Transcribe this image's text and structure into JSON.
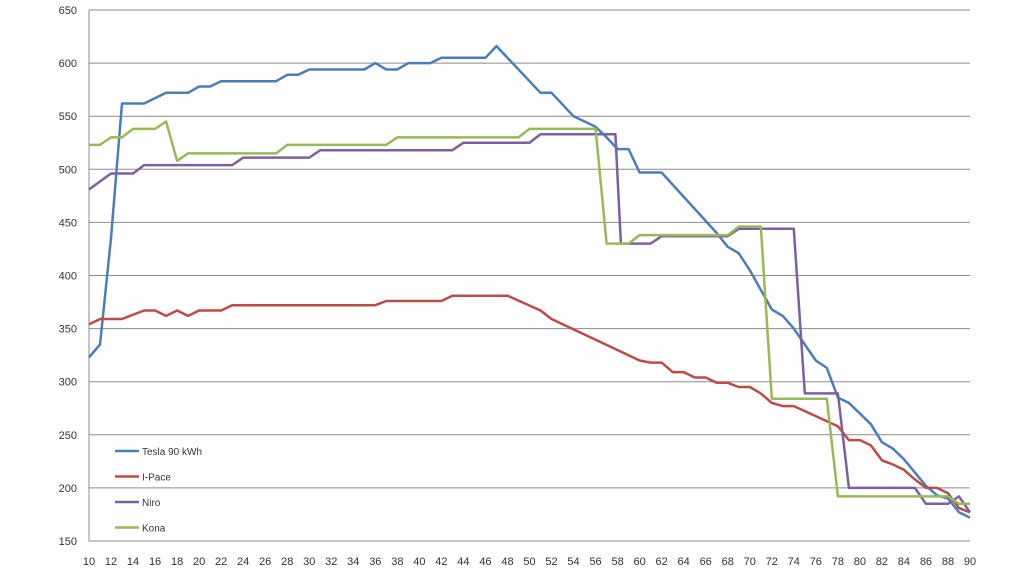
{
  "chart_data": {
    "type": "line",
    "title": "",
    "xlabel": "",
    "ylabel": "",
    "xlim": [
      10,
      90
    ],
    "ylim": [
      150,
      650
    ],
    "grid": true,
    "legend_placement": "bottom-left",
    "x_ticks": [
      10,
      12,
      14,
      16,
      18,
      20,
      22,
      24,
      26,
      28,
      30,
      32,
      34,
      36,
      38,
      40,
      42,
      44,
      46,
      48,
      50,
      52,
      54,
      56,
      58,
      60,
      62,
      64,
      66,
      68,
      70,
      72,
      74,
      76,
      78,
      80,
      82,
      84,
      86,
      88,
      90
    ],
    "y_ticks": [
      150,
      200,
      250,
      300,
      350,
      400,
      450,
      500,
      550,
      600,
      650
    ],
    "series": [
      {
        "name": "Tesla 90 kWh",
        "color": "#4a7ebb",
        "points": [
          [
            10,
            323
          ],
          [
            11,
            335
          ],
          [
            12,
            435
          ],
          [
            13,
            562
          ],
          [
            15,
            562
          ],
          [
            16,
            567
          ],
          [
            17,
            572
          ],
          [
            19,
            572
          ],
          [
            20,
            578
          ],
          [
            21,
            578
          ],
          [
            22,
            583
          ],
          [
            27,
            583
          ],
          [
            28,
            589
          ],
          [
            29,
            589
          ],
          [
            30,
            594
          ],
          [
            35,
            594
          ],
          [
            36,
            600
          ],
          [
            37,
            594
          ],
          [
            38,
            594
          ],
          [
            39,
            600
          ],
          [
            41,
            600
          ],
          [
            42,
            605
          ],
          [
            46,
            605
          ],
          [
            47,
            616
          ],
          [
            51,
            572
          ],
          [
            52,
            572
          ],
          [
            54,
            550
          ],
          [
            56,
            540
          ],
          [
            57,
            530
          ],
          [
            58,
            519
          ],
          [
            59,
            519
          ],
          [
            60,
            497
          ],
          [
            62,
            497
          ],
          [
            67,
            440
          ],
          [
            68,
            427
          ],
          [
            69,
            421
          ],
          [
            70,
            405
          ],
          [
            72,
            368
          ],
          [
            73,
            362
          ],
          [
            74,
            350
          ],
          [
            75,
            335
          ],
          [
            76,
            320
          ],
          [
            77,
            313
          ],
          [
            78,
            285
          ],
          [
            79,
            280
          ],
          [
            81,
            260
          ],
          [
            82,
            243
          ],
          [
            83,
            237
          ],
          [
            84,
            227
          ],
          [
            86,
            202
          ],
          [
            87,
            193
          ],
          [
            88,
            190
          ],
          [
            89,
            177
          ],
          [
            90,
            172
          ]
        ]
      },
      {
        "name": "I-Pace",
        "color": "#be4b48",
        "points": [
          [
            10,
            354
          ],
          [
            11,
            359
          ],
          [
            13,
            359
          ],
          [
            15,
            367
          ],
          [
            16,
            367
          ],
          [
            17,
            362
          ],
          [
            18,
            367
          ],
          [
            19,
            362
          ],
          [
            20,
            367
          ],
          [
            22,
            367
          ],
          [
            23,
            372
          ],
          [
            36,
            372
          ],
          [
            37,
            376
          ],
          [
            42,
            376
          ],
          [
            43,
            381
          ],
          [
            48,
            381
          ],
          [
            51,
            367
          ],
          [
            52,
            359
          ],
          [
            60,
            320
          ],
          [
            61,
            318
          ],
          [
            62,
            318
          ],
          [
            63,
            309
          ],
          [
            64,
            309
          ],
          [
            65,
            304
          ],
          [
            66,
            304
          ],
          [
            67,
            299
          ],
          [
            68,
            299
          ],
          [
            69,
            295
          ],
          [
            70,
            295
          ],
          [
            71,
            289
          ],
          [
            72,
            280
          ],
          [
            73,
            277
          ],
          [
            74,
            277
          ],
          [
            78,
            258
          ],
          [
            79,
            245
          ],
          [
            80,
            245
          ],
          [
            81,
            240
          ],
          [
            82,
            226
          ],
          [
            83,
            222
          ],
          [
            84,
            217
          ],
          [
            85,
            208
          ],
          [
            86,
            200
          ],
          [
            87,
            200
          ],
          [
            88,
            195
          ],
          [
            89,
            181
          ],
          [
            90,
            177
          ]
        ]
      },
      {
        "name": "Niro",
        "color": "#7d60a0",
        "points": [
          [
            10,
            481
          ],
          [
            12,
            496
          ],
          [
            14,
            496
          ],
          [
            15,
            504
          ],
          [
            23,
            504
          ],
          [
            24,
            511
          ],
          [
            30,
            511
          ],
          [
            31,
            518
          ],
          [
            43,
            518
          ],
          [
            44,
            525
          ],
          [
            50,
            525
          ],
          [
            51,
            533
          ],
          [
            57,
            533
          ],
          [
            57.8,
            533
          ],
          [
            58.3,
            430
          ],
          [
            61,
            430
          ],
          [
            62,
            437
          ],
          [
            68,
            437
          ],
          [
            69,
            444
          ],
          [
            74,
            444
          ],
          [
            75,
            289
          ],
          [
            78,
            289
          ],
          [
            79,
            200
          ],
          [
            85,
            200
          ],
          [
            86,
            185
          ],
          [
            88,
            185
          ],
          [
            89,
            192
          ],
          [
            90,
            177
          ]
        ]
      },
      {
        "name": "Kona",
        "color": "#98b955",
        "points": [
          [
            10,
            523
          ],
          [
            11,
            523
          ],
          [
            12,
            530
          ],
          [
            13,
            530
          ],
          [
            14,
            538
          ],
          [
            16,
            538
          ],
          [
            17,
            545
          ],
          [
            18,
            508
          ],
          [
            19,
            515
          ],
          [
            27,
            515
          ],
          [
            28,
            523
          ],
          [
            37,
            523
          ],
          [
            38,
            530
          ],
          [
            49,
            530
          ],
          [
            50,
            538
          ],
          [
            56,
            538
          ],
          [
            57,
            430
          ],
          [
            58,
            430
          ],
          [
            59,
            430
          ],
          [
            60,
            438
          ],
          [
            68,
            438
          ],
          [
            69,
            446
          ],
          [
            71,
            446
          ],
          [
            72,
            284
          ],
          [
            77,
            284
          ],
          [
            78,
            192
          ],
          [
            88,
            192
          ],
          [
            89,
            185
          ],
          [
            90,
            185
          ]
        ]
      }
    ]
  }
}
